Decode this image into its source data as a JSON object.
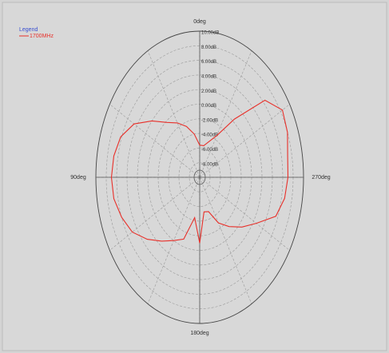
{
  "chart_data": {
    "type": "polar",
    "legend_title": "Legend",
    "series": [
      {
        "name": "1700MHz",
        "color": "#e8302a",
        "values": [
          -5.6,
          -4,
          -2.6,
          -1.4,
          -0.2,
          2,
          4.6,
          6.2,
          6.8,
          7,
          6.8,
          6,
          5,
          3.2,
          1.4,
          0,
          -1,
          -4.4,
          -1,
          -5.2,
          -5,
          -2.8,
          -1.2,
          0.6,
          2.6,
          5.6,
          6.6,
          7,
          7.2,
          8,
          8.4,
          6.4,
          0.4,
          -3.4,
          -4.8,
          -5.6
        ]
      }
    ],
    "theta": [
      0,
      10,
      20,
      30,
      40,
      50,
      60,
      70,
      80,
      90,
      100,
      110,
      120,
      130,
      140,
      150,
      160,
      170,
      180,
      190,
      200,
      210,
      220,
      230,
      240,
      250,
      260,
      270,
      280,
      290,
      300,
      310,
      320,
      330,
      340,
      350
    ],
    "thetaticks": [
      {
        "value": 0,
        "label": "0deg"
      },
      {
        "value": 90,
        "label": "90deg"
      },
      {
        "value": 180,
        "label": "180deg"
      },
      {
        "value": 270,
        "label": "270deg"
      }
    ],
    "rlim": [
      -10,
      10
    ],
    "rticks": [
      {
        "value": -8,
        "label": "-8.00dB"
      },
      {
        "value": -6,
        "label": "-6.00dB"
      },
      {
        "value": -4,
        "label": "-4.00dB"
      },
      {
        "value": -2,
        "label": "-2.00dB"
      },
      {
        "value": 0,
        "label": "0.00dB"
      },
      {
        "value": 2,
        "label": "2.00dB"
      },
      {
        "value": 4,
        "label": "4.00dB"
      },
      {
        "value": 6,
        "label": "6.00dB"
      },
      {
        "value": 8,
        "label": "8.00dB"
      },
      {
        "value": 10,
        "label": "10.00dB"
      }
    ],
    "grid": true
  }
}
